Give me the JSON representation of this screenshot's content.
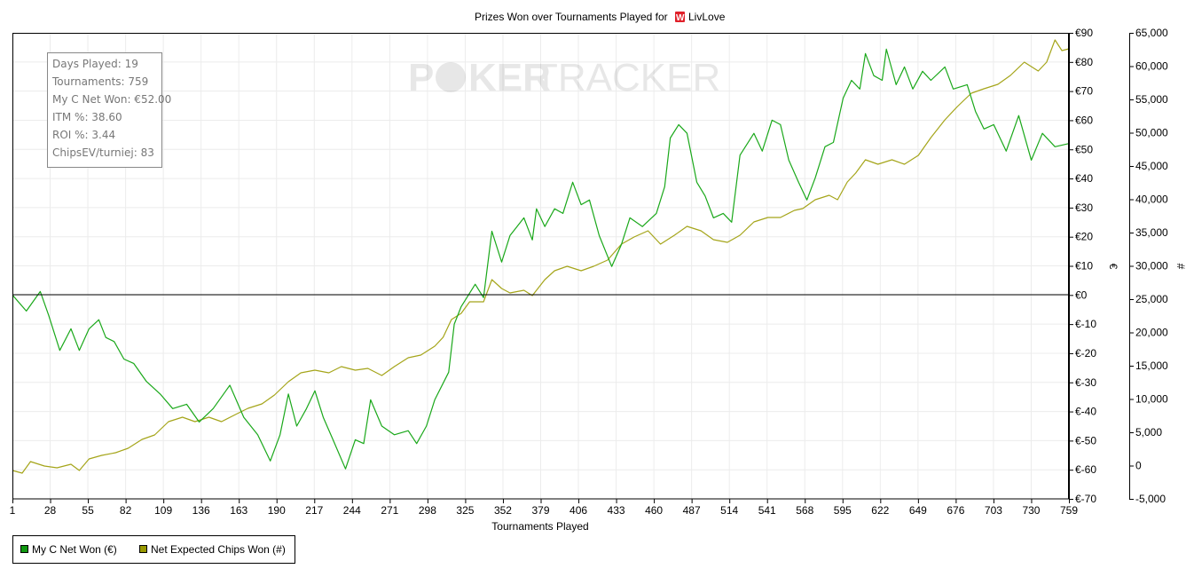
{
  "chart_data": {
    "type": "line",
    "title": "Prizes Won over Tournaments Played for",
    "player": "LivLove",
    "xlabel": "Tournaments Played",
    "ylabel_left": "€",
    "ylabel_right": "#",
    "xlim": [
      1,
      759
    ],
    "ylim_left": [
      -70,
      90
    ],
    "ylim_right": [
      -5000,
      65000
    ],
    "x_ticks": [
      "1",
      "28",
      "55",
      "82",
      "109",
      "136",
      "163",
      "190",
      "217",
      "244",
      "271",
      "298",
      "325",
      "352",
      "379",
      "406",
      "433",
      "460",
      "487",
      "514",
      "541",
      "568",
      "595",
      "622",
      "649",
      "676",
      "703",
      "730",
      "759"
    ],
    "y_ticks_left": [
      "€90",
      "€80",
      "€70",
      "€60",
      "€50",
      "€40",
      "€30",
      "€20",
      "€10",
      "€0",
      "€-10",
      "€-20",
      "€-30",
      "€-40",
      "€-50",
      "€-60",
      "€-70"
    ],
    "y_ticks_right": [
      "65,000",
      "60,000",
      "55,000",
      "50,000",
      "45,000",
      "40,000",
      "35,000",
      "30,000",
      "25,000",
      "20,000",
      "15,000",
      "10,000",
      "5,000",
      "0",
      "-5,000"
    ],
    "grid": true,
    "legend_placement": "bottom-left",
    "watermark": "POKERTRACKER",
    "stats": [
      "Days Played: 19",
      "Tournaments: 759",
      "My C Net Won: €52.00",
      "ITM %: 38.60",
      "ROI %: 3.44",
      "ChipsEV/turniej: 83"
    ],
    "series": [
      {
        "name": "My C Net Won (€)",
        "axis": "left",
        "color": "#1aa81a",
        "legend_color": "#119911",
        "points": [
          [
            1,
            0
          ],
          [
            11,
            -5.5
          ],
          [
            21,
            1.2
          ],
          [
            27,
            -7
          ],
          [
            35,
            -19
          ],
          [
            43,
            -11.6
          ],
          [
            49,
            -19
          ],
          [
            56,
            -11.6
          ],
          [
            63,
            -8.5
          ],
          [
            68,
            -14.6
          ],
          [
            74,
            -16
          ],
          [
            81,
            -22
          ],
          [
            88,
            -23.5
          ],
          [
            97,
            -29.6
          ],
          [
            107,
            -34
          ],
          [
            116,
            -39
          ],
          [
            126,
            -37.5
          ],
          [
            135,
            -43.6
          ],
          [
            145,
            -39
          ],
          [
            157,
            -31
          ],
          [
            167,
            -42
          ],
          [
            177,
            -48
          ],
          [
            186,
            -57
          ],
          [
            193,
            -48
          ],
          [
            199,
            -34
          ],
          [
            205,
            -45
          ],
          [
            212,
            -39
          ],
          [
            218,
            -32.9
          ],
          [
            224,
            -42
          ],
          [
            231,
            -49.7
          ],
          [
            240,
            -59.7
          ],
          [
            247,
            -49.7
          ],
          [
            253,
            -51
          ],
          [
            258,
            -36
          ],
          [
            266,
            -45
          ],
          [
            275,
            -48
          ],
          [
            285,
            -46.6
          ],
          [
            291,
            -51
          ],
          [
            298,
            -45
          ],
          [
            304,
            -36
          ],
          [
            314,
            -26.5
          ],
          [
            318,
            -10
          ],
          [
            323,
            -4
          ],
          [
            333,
            3.7
          ],
          [
            339,
            -0.9
          ],
          [
            345,
            21.9
          ],
          [
            352,
            11.3
          ],
          [
            358,
            20.4
          ],
          [
            368,
            26.5
          ],
          [
            374,
            18.9
          ],
          [
            377,
            29.6
          ],
          [
            383,
            23.5
          ],
          [
            390,
            29.6
          ],
          [
            396,
            28
          ],
          [
            403,
            38.7
          ],
          [
            409,
            31
          ],
          [
            415,
            32.6
          ],
          [
            422,
            20.4
          ],
          [
            431,
            9.8
          ],
          [
            438,
            17.4
          ],
          [
            444,
            26.5
          ],
          [
            453,
            23.5
          ],
          [
            463,
            28
          ],
          [
            469,
            37.2
          ],
          [
            473,
            53.9
          ],
          [
            479,
            58.5
          ],
          [
            485,
            55.5
          ],
          [
            492,
            38.7
          ],
          [
            498,
            34
          ],
          [
            504,
            26.5
          ],
          [
            511,
            28
          ],
          [
            517,
            25
          ],
          [
            523,
            48
          ],
          [
            533,
            55.5
          ],
          [
            539,
            49.4
          ],
          [
            546,
            60
          ],
          [
            552,
            58.5
          ],
          [
            558,
            46.3
          ],
          [
            565,
            38.7
          ],
          [
            571,
            32.6
          ],
          [
            577,
            40.2
          ],
          [
            584,
            50.9
          ],
          [
            590,
            52.4
          ],
          [
            597,
            67.6
          ],
          [
            603,
            73.7
          ],
          [
            609,
            70.7
          ],
          [
            613,
            82.9
          ],
          [
            619,
            75.3
          ],
          [
            625,
            73.7
          ],
          [
            628,
            84.4
          ],
          [
            635,
            72.2
          ],
          [
            641,
            78.3
          ],
          [
            647,
            70.7
          ],
          [
            654,
            76.8
          ],
          [
            660,
            73.7
          ],
          [
            670,
            78.3
          ],
          [
            676,
            70.7
          ],
          [
            686,
            72.2
          ],
          [
            692,
            63
          ],
          [
            698,
            57
          ],
          [
            705,
            58.5
          ],
          [
            714,
            49.4
          ],
          [
            723,
            61.6
          ],
          [
            732,
            46.3
          ],
          [
            740,
            55.5
          ],
          [
            749,
            50.9
          ],
          [
            759,
            52
          ]
        ]
      },
      {
        "name": "Net Expected Chips Won (#)",
        "axis": "right",
        "color": "#a5a51a",
        "legend_color": "#999900",
        "points": [
          [
            1,
            -733
          ],
          [
            8,
            -1133
          ],
          [
            14,
            600
          ],
          [
            24,
            -67
          ],
          [
            33,
            -333
          ],
          [
            43,
            200
          ],
          [
            49,
            -733
          ],
          [
            56,
            1000
          ],
          [
            65,
            1533
          ],
          [
            75,
            1933
          ],
          [
            84,
            2600
          ],
          [
            94,
            3933
          ],
          [
            103,
            4600
          ],
          [
            113,
            6600
          ],
          [
            123,
            7267
          ],
          [
            132,
            6600
          ],
          [
            142,
            7267
          ],
          [
            151,
            6600
          ],
          [
            161,
            7667
          ],
          [
            170,
            8600
          ],
          [
            180,
            9267
          ],
          [
            189,
            10600
          ],
          [
            199,
            12600
          ],
          [
            208,
            13933
          ],
          [
            218,
            14333
          ],
          [
            228,
            13933
          ],
          [
            237,
            14867
          ],
          [
            247,
            14333
          ],
          [
            256,
            14600
          ],
          [
            266,
            13533
          ],
          [
            275,
            14867
          ],
          [
            285,
            16200
          ],
          [
            294,
            16600
          ],
          [
            304,
            17933
          ],
          [
            310,
            19267
          ],
          [
            316,
            21933
          ],
          [
            323,
            22867
          ],
          [
            329,
            24600
          ],
          [
            339,
            24600
          ],
          [
            345,
            27933
          ],
          [
            352,
            26600
          ],
          [
            358,
            25933
          ],
          [
            368,
            26333
          ],
          [
            374,
            25533
          ],
          [
            383,
            27933
          ],
          [
            390,
            29267
          ],
          [
            399,
            29933
          ],
          [
            409,
            29267
          ],
          [
            418,
            29933
          ],
          [
            428,
            30867
          ],
          [
            438,
            33267
          ],
          [
            447,
            34333
          ],
          [
            457,
            35267
          ],
          [
            466,
            33267
          ],
          [
            476,
            34600
          ],
          [
            485,
            35933
          ],
          [
            495,
            35267
          ],
          [
            504,
            33933
          ],
          [
            514,
            33533
          ],
          [
            523,
            34600
          ],
          [
            533,
            36600
          ],
          [
            543,
            37267
          ],
          [
            552,
            37267
          ],
          [
            562,
            38333
          ],
          [
            568,
            38600
          ],
          [
            577,
            39933
          ],
          [
            587,
            40600
          ],
          [
            593,
            39933
          ],
          [
            600,
            42600
          ],
          [
            606,
            43933
          ],
          [
            613,
            45933
          ],
          [
            622,
            45267
          ],
          [
            632,
            45933
          ],
          [
            641,
            45267
          ],
          [
            651,
            46600
          ],
          [
            660,
            49267
          ],
          [
            670,
            51933
          ],
          [
            679,
            53933
          ],
          [
            689,
            55933
          ],
          [
            698,
            56600
          ],
          [
            708,
            57267
          ],
          [
            717,
            58600
          ],
          [
            727,
            60600
          ],
          [
            737,
            59267
          ],
          [
            743,
            60600
          ],
          [
            749,
            63933
          ],
          [
            754,
            62333
          ],
          [
            759,
            62600
          ]
        ]
      }
    ]
  }
}
